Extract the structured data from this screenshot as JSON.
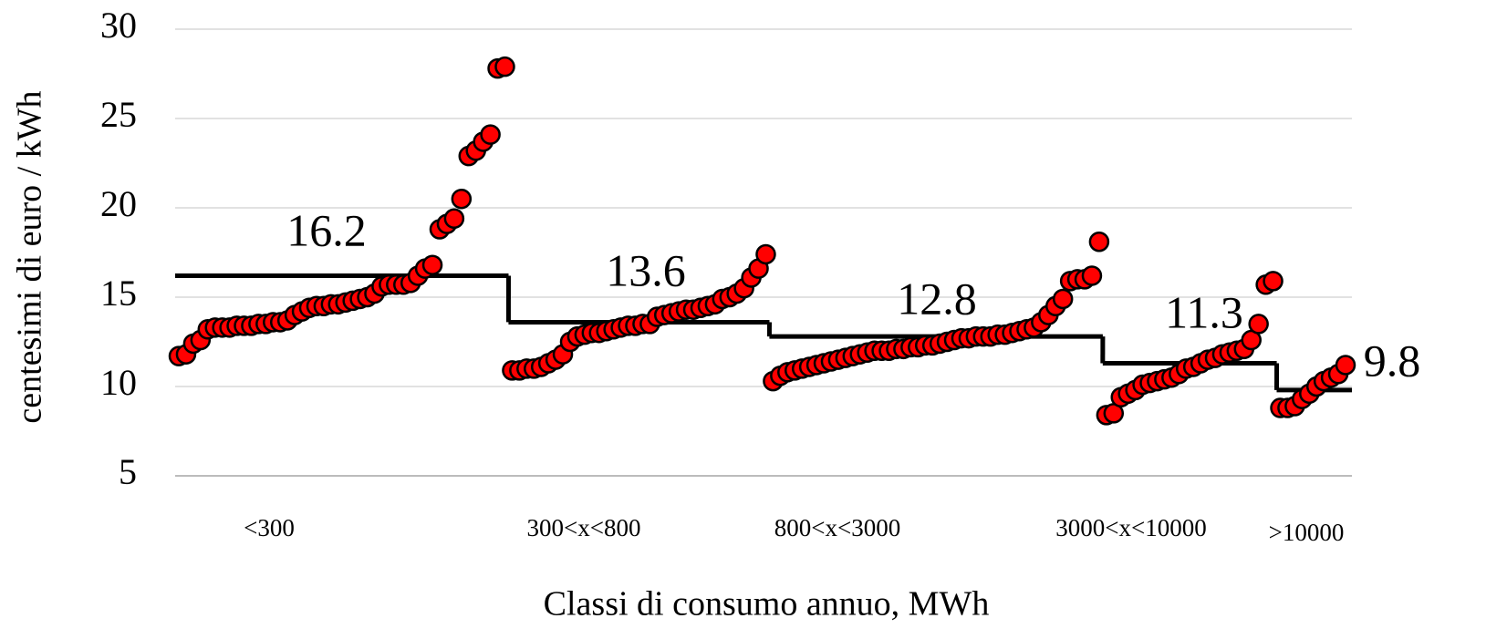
{
  "chart_data": {
    "type": "scatter",
    "x_label": "Classi di consumo annuo, MWh",
    "y_label": "centesimi di euro / kWh",
    "ylim": [
      5,
      30
    ],
    "yticks": [
      5,
      10,
      15,
      20,
      25,
      30
    ],
    "grid": true,
    "point_color": "#ff0000",
    "line_color": "#000000",
    "groups": [
      {
        "category": "<300",
        "mean": 16.2,
        "values": [
          11.7,
          11.8,
          12.4,
          12.6,
          13.2,
          13.3,
          13.3,
          13.3,
          13.4,
          13.4,
          13.4,
          13.5,
          13.5,
          13.6,
          13.6,
          13.7,
          14.0,
          14.2,
          14.4,
          14.5,
          14.5,
          14.6,
          14.6,
          14.7,
          14.8,
          14.9,
          15.0,
          15.2,
          15.6,
          15.7,
          15.7,
          15.7,
          15.8,
          16.2,
          16.6,
          16.8,
          18.8,
          19.1,
          19.4,
          20.5,
          22.9,
          23.2,
          23.7,
          24.1,
          27.8,
          27.9
        ]
      },
      {
        "category": "300<x<800",
        "mean": 13.6,
        "values": [
          10.9,
          10.9,
          11.0,
          11.0,
          11.1,
          11.3,
          11.5,
          11.8,
          12.5,
          12.8,
          12.9,
          13.0,
          13.0,
          13.1,
          13.2,
          13.3,
          13.4,
          13.4,
          13.5,
          13.5,
          13.9,
          14.0,
          14.1,
          14.2,
          14.3,
          14.3,
          14.4,
          14.5,
          14.6,
          14.9,
          15.0,
          15.2,
          15.5,
          16.1,
          16.6,
          17.4
        ]
      },
      {
        "category": "800<x<3000",
        "mean": 12.8,
        "values": [
          10.3,
          10.6,
          10.8,
          10.9,
          11.0,
          11.1,
          11.2,
          11.3,
          11.4,
          11.5,
          11.6,
          11.7,
          11.8,
          11.9,
          12.0,
          12.0,
          12.0,
          12.1,
          12.1,
          12.2,
          12.2,
          12.3,
          12.3,
          12.4,
          12.5,
          12.6,
          12.7,
          12.7,
          12.8,
          12.8,
          12.8,
          12.9,
          12.9,
          13.0,
          13.1,
          13.2,
          13.3,
          13.6,
          14.0,
          14.5,
          14.9,
          15.9,
          16.0,
          16.0,
          16.2,
          18.1
        ]
      },
      {
        "category": "3000<x<10000",
        "mean": 11.3,
        "values": [
          8.4,
          8.5,
          9.4,
          9.6,
          9.8,
          10.1,
          10.2,
          10.3,
          10.4,
          10.5,
          10.7,
          11.0,
          11.1,
          11.3,
          11.5,
          11.6,
          11.8,
          11.9,
          12.0,
          12.1,
          12.6,
          13.5,
          15.7,
          15.9
        ]
      },
      {
        "category": ">10000",
        "mean": 9.8,
        "values": [
          8.8,
          8.8,
          8.9,
          9.3,
          9.6,
          10.0,
          10.3,
          10.5,
          10.7,
          11.2
        ]
      }
    ]
  }
}
